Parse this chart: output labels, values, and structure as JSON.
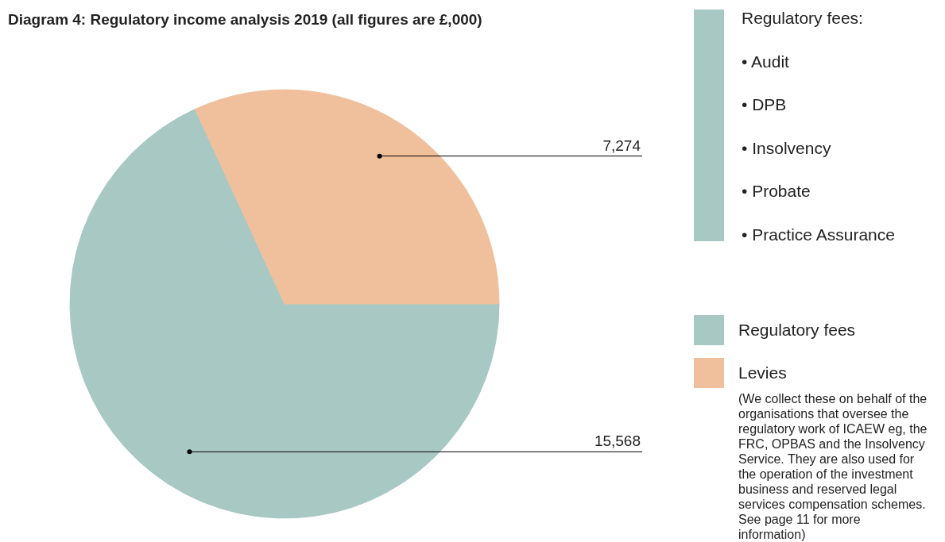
{
  "chart_data": {
    "type": "pie",
    "title": "Diagram 4: Regulatory income analysis 2019 (all figures are £,000)",
    "categories": [
      "Regulatory fees",
      "Levies"
    ],
    "values": [
      15568,
      7274
    ],
    "colors": [
      "#a8c8c4",
      "#f0c09c"
    ],
    "value_labels": [
      "15,568",
      "7,274"
    ],
    "legend": "right",
    "annotations": [
      "Regulatory fees:",
      "• Audit",
      "• DPB",
      "• Insolvency",
      "• Probate",
      "• Practice Assurance",
      "(We collect these on behalf of the organisations that oversee the regulatory work of ICAEW eg, the FRC, OPBAS and the Insolvency Service. They are also used for the operation of the investment business and reserved legal services compensation schemes. See page 11 for more information)"
    ]
  }
}
